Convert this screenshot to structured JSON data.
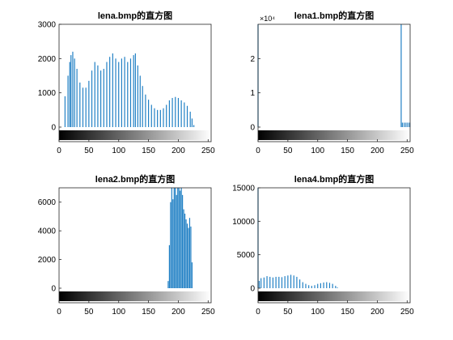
{
  "chart_data": [
    {
      "type": "bar",
      "title": "lena.bmp的直方图",
      "xlabel": "",
      "ylabel": "",
      "xlim": [
        0,
        255
      ],
      "ylim": [
        0,
        3000
      ],
      "xticks": [
        "0",
        "50",
        "100",
        "150",
        "200",
        "250"
      ],
      "yticks": [
        "0",
        "1000",
        "2000",
        "3000"
      ],
      "ytick_values": [
        0,
        1000,
        2000,
        3000
      ],
      "y_exponent": "",
      "grayscale_colorbar": true,
      "series": [
        {
          "values": [
            [
              10,
              900
            ],
            [
              15,
              1500
            ],
            [
              18,
              1900
            ],
            [
              20,
              2100
            ],
            [
              23,
              2200
            ],
            [
              26,
              2000
            ],
            [
              30,
              1700
            ],
            [
              35,
              1300
            ],
            [
              40,
              1150
            ],
            [
              45,
              1150
            ],
            [
              50,
              1350
            ],
            [
              55,
              1650
            ],
            [
              60,
              1900
            ],
            [
              65,
              1800
            ],
            [
              70,
              1650
            ],
            [
              75,
              1700
            ],
            [
              80,
              1900
            ],
            [
              85,
              2050
            ],
            [
              90,
              2150
            ],
            [
              95,
              2000
            ],
            [
              100,
              1900
            ],
            [
              105,
              2000
            ],
            [
              110,
              2050
            ],
            [
              115,
              1900
            ],
            [
              120,
              2000
            ],
            [
              125,
              2100
            ],
            [
              128,
              2150
            ],
            [
              132,
              1800
            ],
            [
              136,
              1500
            ],
            [
              140,
              1200
            ],
            [
              145,
              950
            ],
            [
              150,
              800
            ],
            [
              155,
              650
            ],
            [
              160,
              550
            ],
            [
              165,
              500
            ],
            [
              170,
              500
            ],
            [
              175,
              550
            ],
            [
              180,
              650
            ],
            [
              185,
              780
            ],
            [
              190,
              850
            ],
            [
              195,
              880
            ],
            [
              200,
              850
            ],
            [
              205,
              780
            ],
            [
              210,
              720
            ],
            [
              215,
              620
            ],
            [
              220,
              450
            ],
            [
              223,
              250
            ],
            [
              226,
              60
            ],
            [
              230,
              0
            ]
          ]
        }
      ]
    },
    {
      "type": "bar",
      "title": "lena1.bmp的直方图",
      "xlabel": "",
      "ylabel": "",
      "xlim": [
        0,
        255
      ],
      "ylim": [
        0,
        30000
      ],
      "xticks": [
        "0",
        "50",
        "100",
        "150",
        "200",
        "250"
      ],
      "yticks": [
        "0",
        "1",
        "2"
      ],
      "ytick_values": [
        0,
        10000,
        20000
      ],
      "y_exponent": "×10⁴",
      "grayscale_colorbar": true,
      "series": [
        {
          "values": [
            [
              0,
              30000
            ],
            [
              240,
              30000
            ],
            [
              242,
              1300
            ],
            [
              245,
              1300
            ],
            [
              248,
              1300
            ],
            [
              251,
              1300
            ],
            [
              254,
              1300
            ]
          ]
        }
      ]
    },
    {
      "type": "bar",
      "title": "lena2.bmp的直方图",
      "xlabel": "",
      "ylabel": "",
      "xlim": [
        0,
        255
      ],
      "ylim": [
        0,
        7000
      ],
      "xticks": [
        "0",
        "50",
        "100",
        "150",
        "200",
        "250"
      ],
      "yticks": [
        "0",
        "2000",
        "4000",
        "6000"
      ],
      "ytick_values": [
        0,
        2000,
        4000,
        6000
      ],
      "y_exponent": "",
      "grayscale_colorbar": true,
      "series": [
        {
          "values": [
            [
              183,
              500
            ],
            [
              185,
              3000
            ],
            [
              187,
              6000
            ],
            [
              189,
              7000
            ],
            [
              191,
              6200
            ],
            [
              193,
              7000
            ],
            [
              195,
              7000
            ],
            [
              197,
              6500
            ],
            [
              199,
              7000
            ],
            [
              201,
              7000
            ],
            [
              203,
              6800
            ],
            [
              205,
              7000
            ],
            [
              207,
              6500
            ],
            [
              209,
              5500
            ],
            [
              211,
              5200
            ],
            [
              213,
              4800
            ],
            [
              215,
              4500
            ],
            [
              217,
              4200
            ],
            [
              219,
              4900
            ],
            [
              221,
              4300
            ],
            [
              223,
              1800
            ]
          ]
        }
      ]
    },
    {
      "type": "bar",
      "title": "lena4.bmp的直方图",
      "xlabel": "",
      "ylabel": "",
      "xlim": [
        0,
        255
      ],
      "ylim": [
        0,
        15000
      ],
      "xticks": [
        "0",
        "50",
        "100",
        "150",
        "200",
        "250"
      ],
      "yticks": [
        "0",
        "5000",
        "10000",
        "15000"
      ],
      "ytick_values": [
        0,
        5000,
        10000,
        15000
      ],
      "y_exponent": "",
      "grayscale_colorbar": true,
      "series": [
        {
          "values": [
            [
              0,
              15000
            ],
            [
              2,
              1100
            ],
            [
              5,
              1500
            ],
            [
              10,
              1600
            ],
            [
              15,
              1800
            ],
            [
              20,
              1700
            ],
            [
              25,
              1600
            ],
            [
              30,
              1700
            ],
            [
              35,
              1700
            ],
            [
              40,
              1650
            ],
            [
              45,
              1800
            ],
            [
              50,
              1900
            ],
            [
              55,
              2000
            ],
            [
              60,
              1900
            ],
            [
              65,
              1700
            ],
            [
              70,
              1300
            ],
            [
              75,
              900
            ],
            [
              80,
              650
            ],
            [
              85,
              450
            ],
            [
              90,
              350
            ],
            [
              95,
              450
            ],
            [
              100,
              650
            ],
            [
              105,
              750
            ],
            [
              110,
              850
            ],
            [
              115,
              900
            ],
            [
              120,
              800
            ],
            [
              125,
              650
            ],
            [
              130,
              350
            ],
            [
              133,
              100
            ],
            [
              136,
              0
            ]
          ]
        }
      ]
    }
  ],
  "colors": {
    "bar": "#1f7fc4",
    "frame": "#262626",
    "background": "#ffffff"
  }
}
